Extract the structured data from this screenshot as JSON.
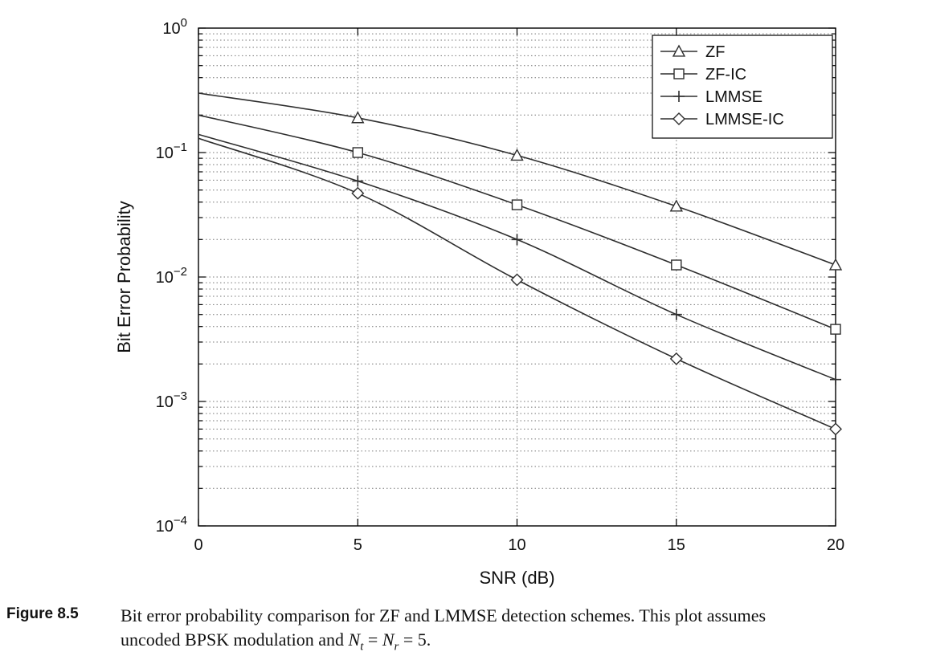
{
  "figure": {
    "label": "Figure 8.5",
    "caption_line1": "Bit error probability comparison for ZF and LMMSE detection schemes. This plot assumes",
    "caption_line2_prefix": "uncoded BPSK modulation and ",
    "math_var1": "N",
    "math_sub1": "t",
    "math_mid": " = ",
    "math_var2": "N",
    "math_sub2": "r",
    "math_end": " = 5."
  },
  "chart_data": {
    "type": "line",
    "x": [
      0,
      5,
      10,
      15,
      20
    ],
    "series": [
      {
        "name": "ZF",
        "marker": "triangle",
        "values": [
          0.3,
          0.19,
          0.095,
          0.037,
          0.0125
        ]
      },
      {
        "name": "ZF-IC",
        "marker": "square",
        "values": [
          0.2,
          0.1,
          0.038,
          0.0125,
          0.0038
        ]
      },
      {
        "name": "LMMSE",
        "marker": "plus",
        "values": [
          0.14,
          0.059,
          0.02,
          0.005,
          0.0015
        ]
      },
      {
        "name": "LMMSE-IC",
        "marker": "diamond",
        "values": [
          0.13,
          0.047,
          0.0095,
          0.0022,
          0.0006
        ]
      }
    ],
    "xlabel": "SNR (dB)",
    "ylabel": "Bit Error Probability",
    "xlim": [
      0,
      20
    ],
    "ylim": [
      0.0001,
      1
    ],
    "ylog": true,
    "xticks": [
      0,
      5,
      10,
      15,
      20
    ],
    "ytick_exponents": [
      0,
      -1,
      -2,
      -3,
      -4
    ],
    "grid": "dotted",
    "legend_position": "top-right",
    "line_color": "#2e2e2e",
    "grid_color": "#777777",
    "background": "#ffffff"
  }
}
